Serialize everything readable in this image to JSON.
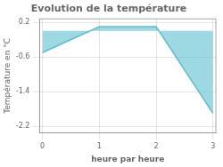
{
  "chart_data": {
    "type": "area",
    "title": "Evolution de la température",
    "xlabel": "heure par heure",
    "ylabel": "Température en °C",
    "x": [
      0,
      1,
      2,
      3
    ],
    "values": [
      -0.5,
      0.1,
      0.1,
      -1.9
    ],
    "color": "#5bbfce",
    "xlim": [
      -0.05,
      3.05
    ],
    "xticks": [
      0,
      1,
      2,
      3
    ],
    "ylim": [
      -2.35,
      0.28
    ],
    "yticks": [
      0.2,
      -0.6,
      -1.4,
      -2.2
    ],
    "grid": true
  }
}
